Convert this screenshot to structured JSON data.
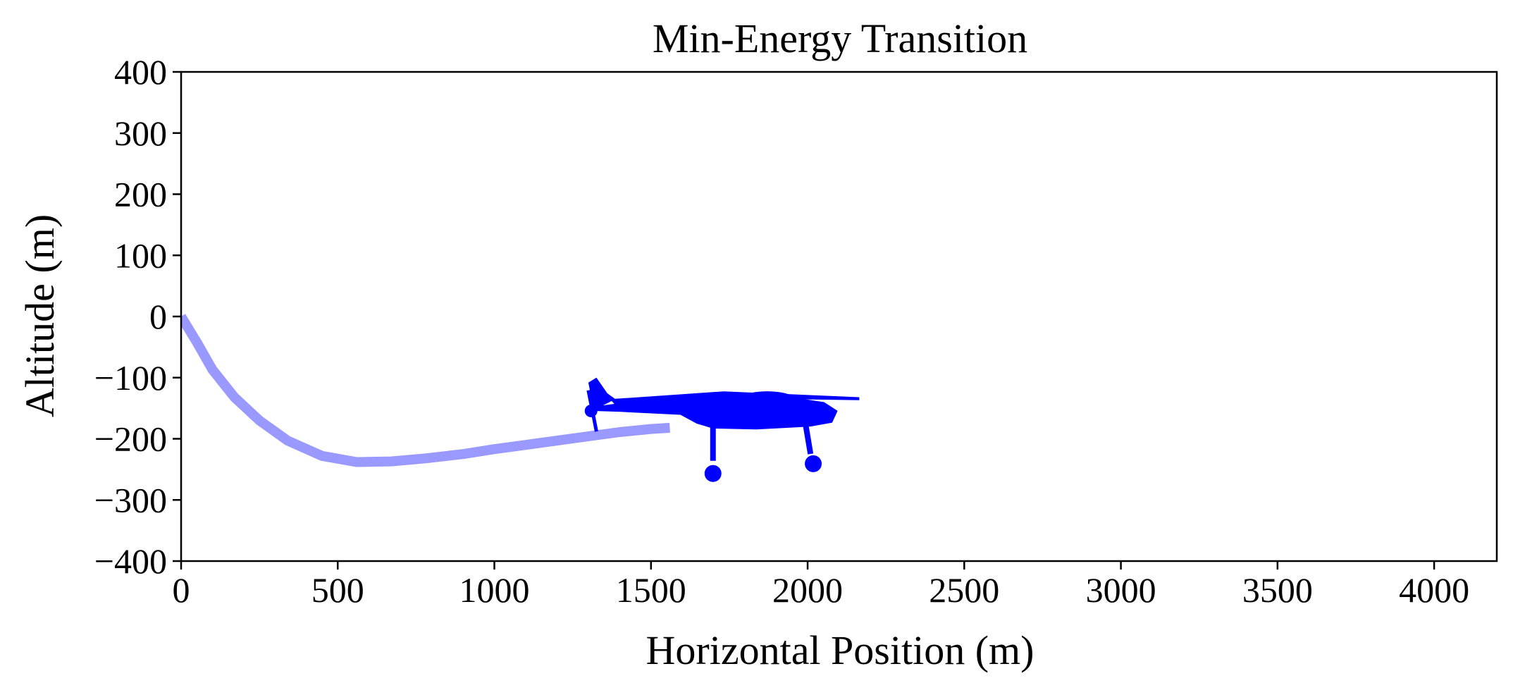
{
  "chart_data": {
    "type": "line",
    "title": "Min-Energy Transition",
    "xlabel": "Horizontal Position (m)",
    "ylabel": "Altitude (m)",
    "xlim": [
      0,
      4200
    ],
    "ylim": [
      -400,
      400
    ],
    "x_ticks": [
      0,
      500,
      1000,
      1500,
      2000,
      2500,
      3000,
      3500,
      4000
    ],
    "y_ticks": [
      -400,
      -300,
      -200,
      -100,
      0,
      100,
      200,
      300,
      400
    ],
    "x_tick_labels": [
      "0",
      "500",
      "1000",
      "1500",
      "2000",
      "2500",
      "3000",
      "3500",
      "4000"
    ],
    "y_tick_labels": [
      "−400",
      "−300",
      "−200",
      "−100",
      "0",
      "100",
      "200",
      "300",
      "400"
    ],
    "grid": false,
    "legend": "none",
    "series": [
      {
        "color": "#9999ff",
        "x": [
          0,
          50,
          100,
          170,
          250,
          340,
          450,
          560,
          670,
          780,
          900,
          1000,
          1100,
          1200,
          1300,
          1400,
          1500,
          1560
        ],
        "y": [
          0,
          -42,
          -87,
          -132,
          -170,
          -203,
          -228,
          -238,
          -237,
          -232,
          -225,
          -217,
          -210,
          -203,
          -196,
          -189,
          -184,
          -182
        ]
      }
    ],
    "annotations": [
      {
        "type": "aircraft-marker",
        "icon": "airplane-icon",
        "color": "#0000ff",
        "x_range": [
          1300,
          2165
        ],
        "y_range": [
          -260,
          -100
        ]
      }
    ]
  }
}
